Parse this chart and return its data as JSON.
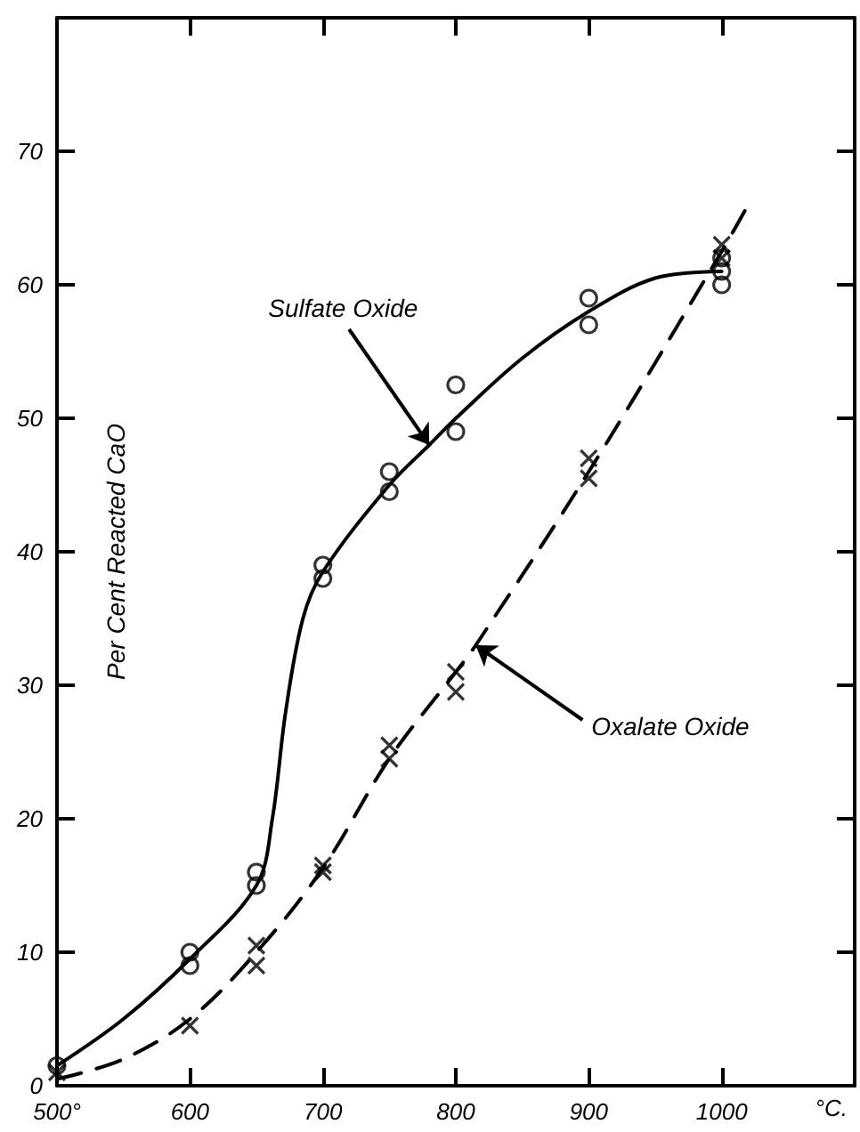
{
  "chart_data": {
    "type": "scatter",
    "ylabel": "Per Cent Reacted CaO",
    "xlabel": "°C.",
    "xlim": [
      500,
      1100
    ],
    "ylim": [
      0,
      80
    ],
    "xticks": [
      {
        "value": 500,
        "label": "500°"
      },
      600,
      700,
      800,
      900,
      1000
    ],
    "yticks": [
      0,
      10,
      20,
      30,
      40,
      50,
      60,
      70
    ],
    "grid": false,
    "series": [
      {
        "marker": "circle",
        "color": "#000000",
        "x": [
          500,
          600,
          600,
          650,
          650,
          700,
          700,
          750,
          750,
          800,
          800,
          900,
          900,
          1000,
          1000,
          1000
        ],
        "values": [
          1.5,
          10,
          9,
          16,
          15,
          39,
          38,
          46,
          44.5,
          52.5,
          49,
          59,
          57,
          62,
          61,
          60
        ]
      },
      {
        "marker": "cross",
        "color": "#000000",
        "x": [
          500,
          600,
          650,
          650,
          700,
          700,
          750,
          750,
          800,
          800,
          900,
          900,
          1000,
          1000
        ],
        "values": [
          1,
          4.5,
          10.5,
          9,
          16.5,
          16,
          25.5,
          24.5,
          31,
          29.5,
          47,
          45.5,
          63,
          62
        ]
      },
      {
        "type": "line",
        "marker": "none",
        "line_style": "solid",
        "color": "#000000",
        "x": [
          500,
          550,
          600,
          650,
          662,
          672,
          685,
          700,
          750,
          780,
          800,
          850,
          900,
          950,
          1000
        ],
        "values": [
          1.5,
          5,
          9.5,
          15,
          20,
          28,
          35,
          38.5,
          45,
          48,
          50,
          54.5,
          58,
          60.5,
          61
        ]
      },
      {
        "type": "line",
        "marker": "none",
        "line_style": "dashed",
        "color": "#000000",
        "x": [
          500,
          550,
          600,
          650,
          700,
          750,
          800,
          815,
          900,
          1000,
          1020
        ],
        "values": [
          0.5,
          2,
          5,
          10,
          16.3,
          24.5,
          31,
          33,
          46,
          62.5,
          66
        ]
      }
    ],
    "annotations": [
      {
        "text": "Sulfate Oxide",
        "x": 780,
        "y": 48
      },
      {
        "text": "Oxalate Oxide",
        "x": 815,
        "y": 33
      }
    ]
  }
}
